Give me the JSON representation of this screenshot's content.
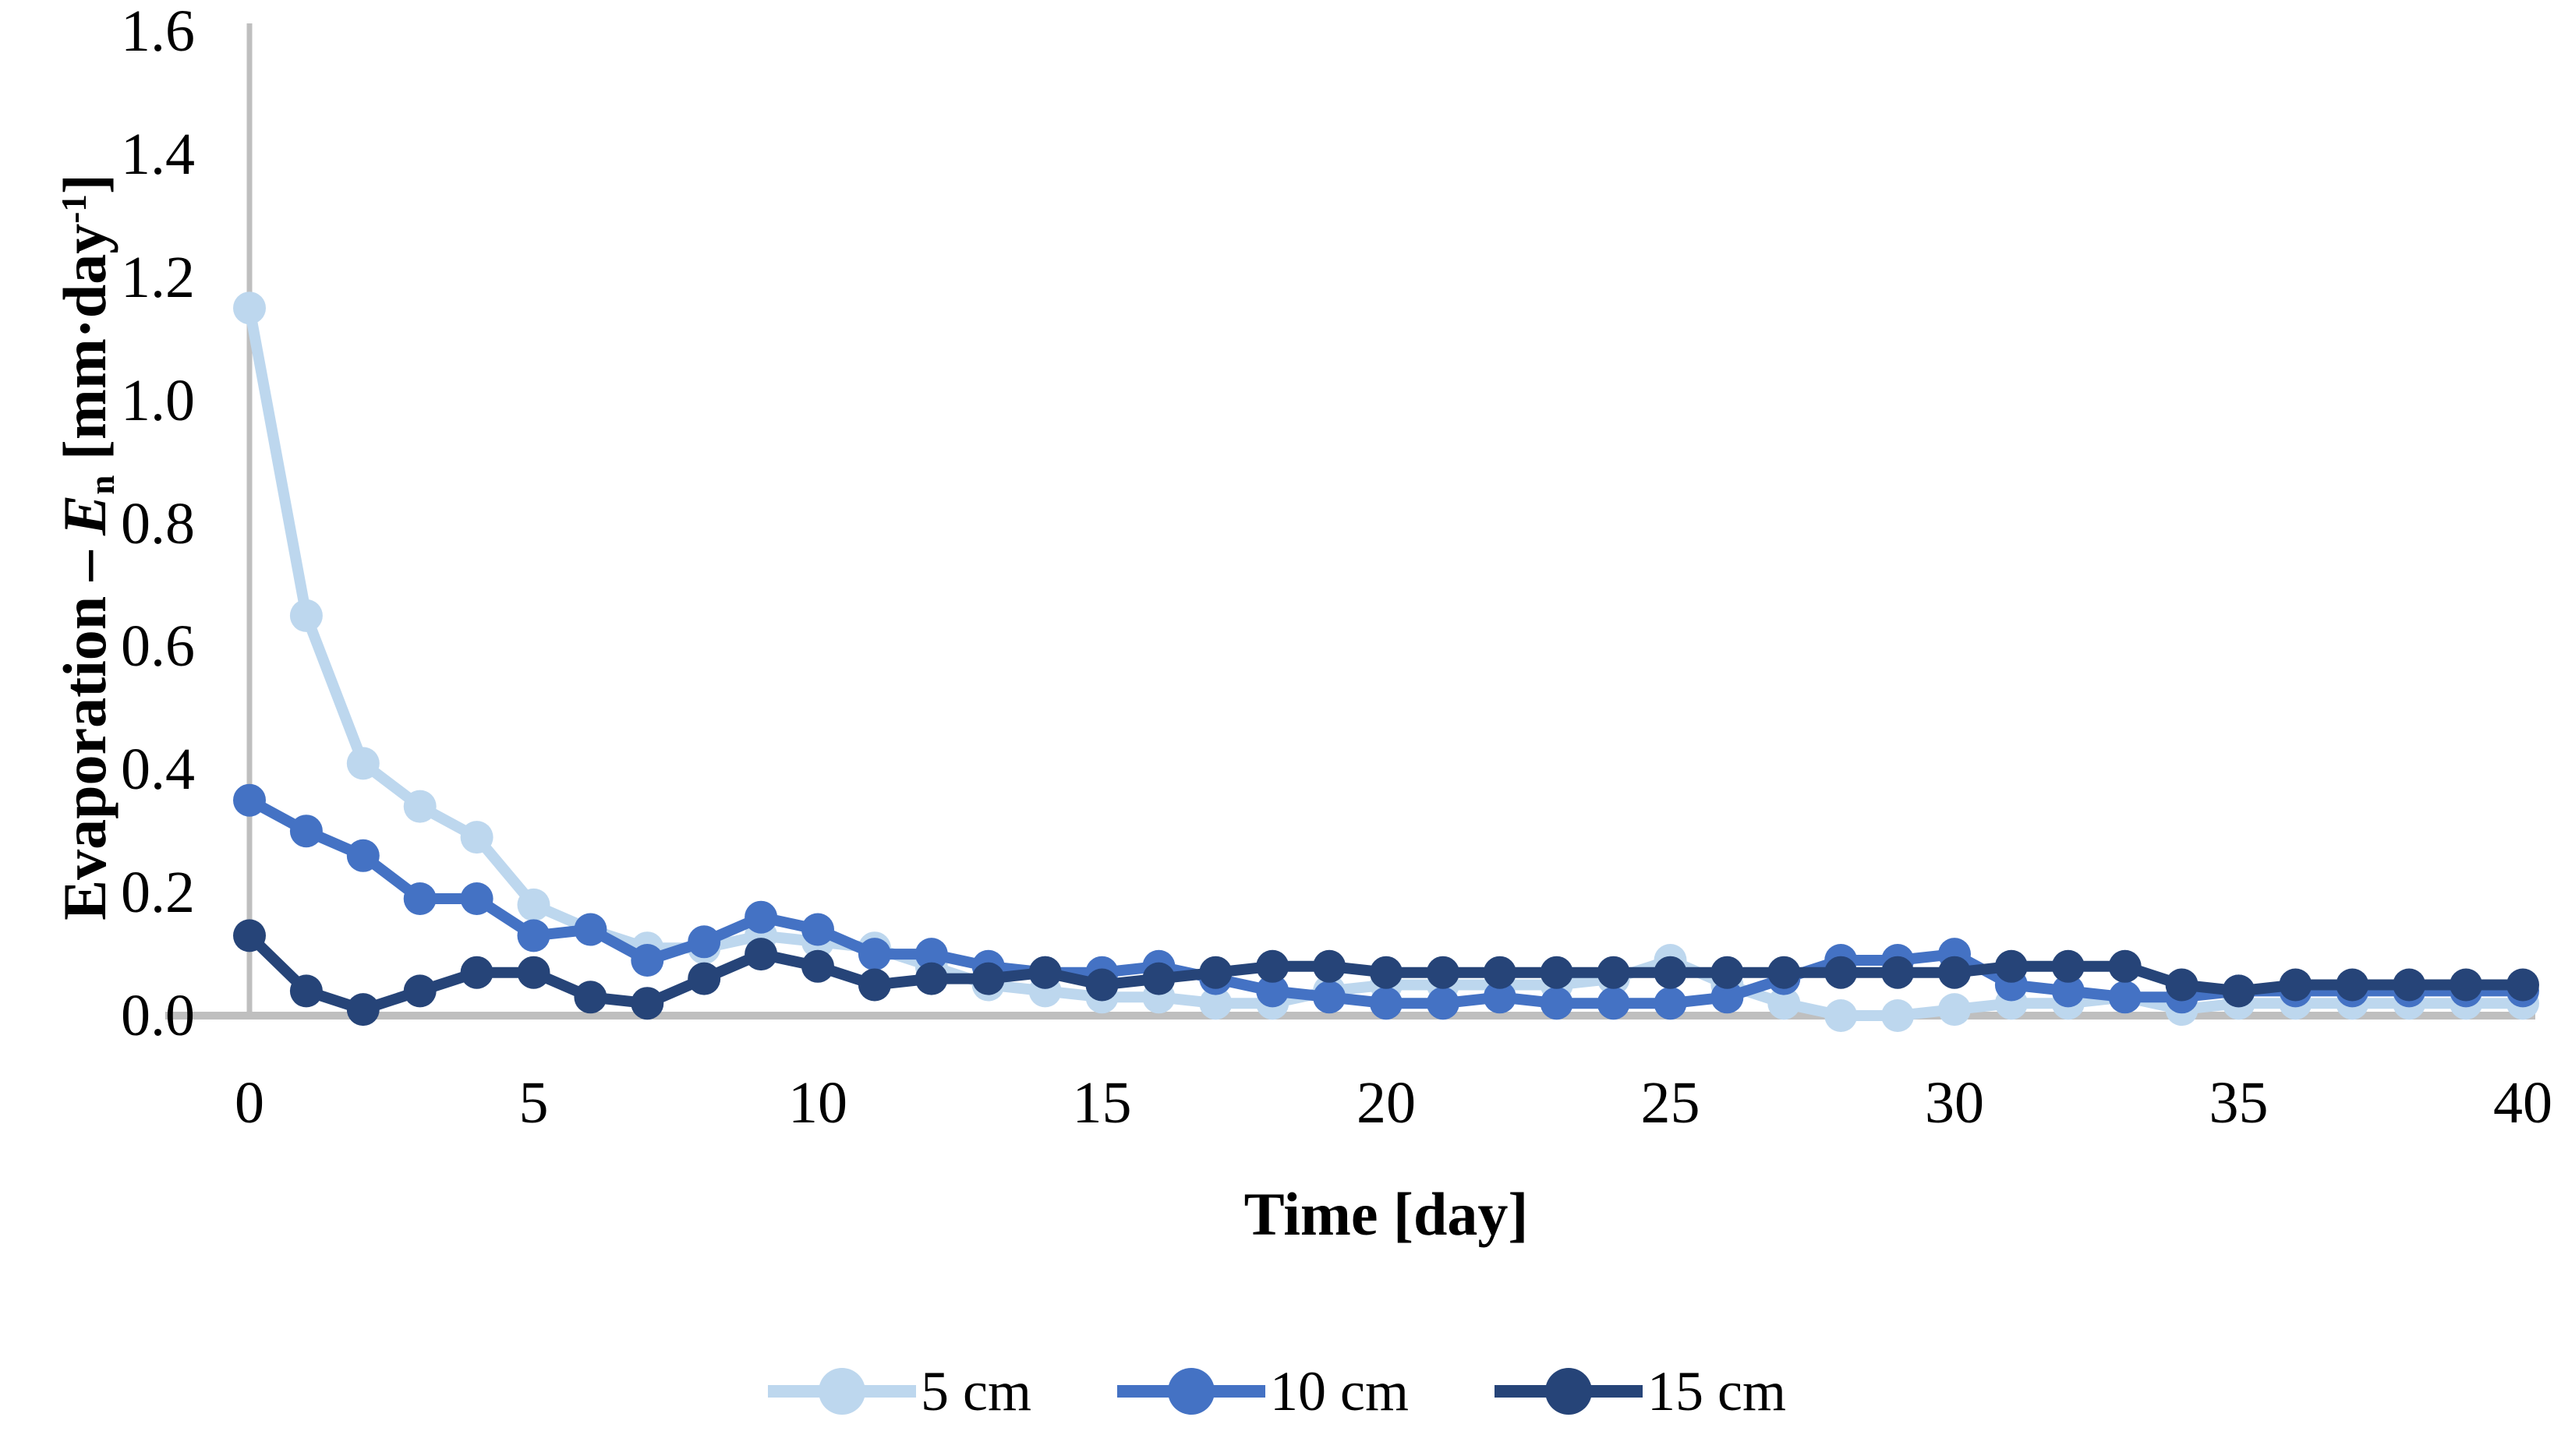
{
  "chart_data": {
    "type": "line",
    "title": "",
    "xlabel": "Time [day]",
    "ylabel": {
      "prefix": "Evaporation – ",
      "variable": "E",
      "variable_subscript": "n",
      "unit_open": " [mm·day",
      "unit_superscript": "-1",
      "unit_close": "]"
    },
    "xlim": [
      0,
      40
    ],
    "ylim": [
      0,
      1.6
    ],
    "grid": false,
    "legend_position": "bottom",
    "axis_color": "#BFBFBF",
    "x_ticks": [
      {
        "label": "0",
        "value": 0
      },
      {
        "label": "5",
        "value": 5
      },
      {
        "label": "10",
        "value": 10
      },
      {
        "label": "15",
        "value": 15
      },
      {
        "label": "20",
        "value": 20
      },
      {
        "label": "25",
        "value": 25
      },
      {
        "label": "30",
        "value": 30
      },
      {
        "label": "35",
        "value": 35
      },
      {
        "label": "40",
        "value": 40
      }
    ],
    "y_ticks": [
      {
        "label": "0.0",
        "value": 0.0
      },
      {
        "label": "0.2",
        "value": 0.2
      },
      {
        "label": "0.4",
        "value": 0.4
      },
      {
        "label": "0.6",
        "value": 0.6
      },
      {
        "label": "0.8",
        "value": 0.8
      },
      {
        "label": "1.0",
        "value": 1.0
      },
      {
        "label": "1.2",
        "value": 1.2
      },
      {
        "label": "1.4",
        "value": 1.4
      },
      {
        "label": "1.6",
        "value": 1.6
      }
    ],
    "x": [
      0,
      1,
      2,
      3,
      4,
      5,
      6,
      7,
      8,
      9,
      10,
      11,
      12,
      13,
      14,
      15,
      16,
      17,
      18,
      19,
      20,
      21,
      22,
      23,
      24,
      25,
      26,
      27,
      28,
      29,
      30,
      31,
      32,
      33,
      34,
      35,
      36,
      37,
      38,
      39,
      40
    ],
    "series": [
      {
        "name": "5 cm",
        "color": "#BDD7EE",
        "values": [
          1.15,
          0.65,
          0.41,
          0.34,
          0.29,
          0.18,
          0.14,
          0.11,
          0.11,
          0.13,
          0.12,
          0.11,
          0.08,
          0.05,
          0.04,
          0.03,
          0.03,
          0.02,
          0.02,
          0.04,
          0.05,
          0.05,
          0.05,
          0.05,
          0.06,
          0.09,
          0.05,
          0.02,
          0.0,
          0.0,
          0.01,
          0.02,
          0.02,
          0.03,
          0.01,
          0.02,
          0.02,
          0.02,
          0.02,
          0.02,
          0.02
        ]
      },
      {
        "name": "10 cm",
        "color": "#4472C4",
        "values": [
          0.35,
          0.3,
          0.26,
          0.19,
          0.19,
          0.13,
          0.14,
          0.09,
          0.12,
          0.16,
          0.14,
          0.1,
          0.1,
          0.08,
          0.07,
          0.07,
          0.08,
          0.06,
          0.04,
          0.03,
          0.02,
          0.02,
          0.03,
          0.02,
          0.02,
          0.02,
          0.03,
          0.06,
          0.09,
          0.09,
          0.1,
          0.05,
          0.04,
          0.03,
          0.03,
          0.04,
          0.04,
          0.04,
          0.04,
          0.04,
          0.04
        ]
      },
      {
        "name": "15 cm",
        "color": "#264478",
        "values": [
          0.13,
          0.04,
          0.01,
          0.04,
          0.07,
          0.07,
          0.03,
          0.02,
          0.06,
          0.1,
          0.08,
          0.05,
          0.06,
          0.06,
          0.07,
          0.05,
          0.06,
          0.07,
          0.08,
          0.08,
          0.07,
          0.07,
          0.07,
          0.07,
          0.07,
          0.07,
          0.07,
          0.07,
          0.07,
          0.07,
          0.07,
          0.08,
          0.08,
          0.08,
          0.05,
          0.04,
          0.05,
          0.05,
          0.05,
          0.05,
          0.05
        ]
      }
    ]
  }
}
